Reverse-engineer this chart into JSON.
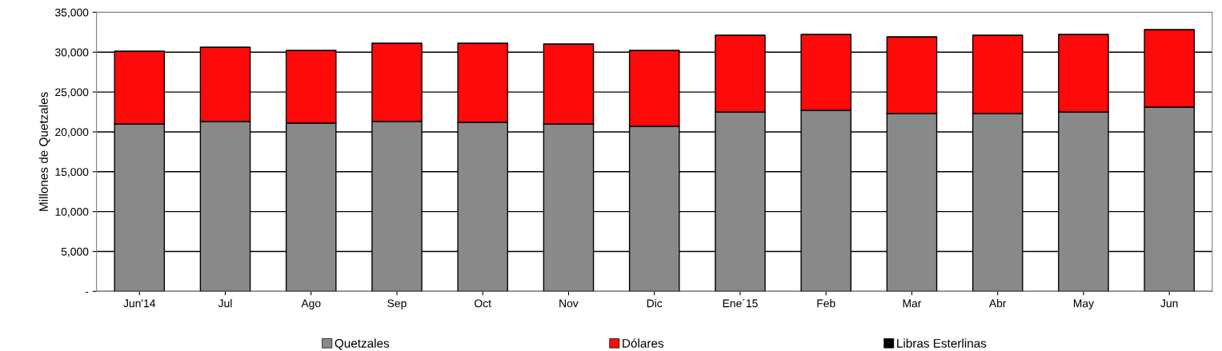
{
  "chart_data": {
    "type": "bar",
    "stacked": true,
    "ylabel": "Millones de Quetzales",
    "categories": [
      "Jun'14",
      "Jul",
      "Ago",
      "Sep",
      "Oct",
      "Nov",
      "Dic",
      "Ene´15",
      "Feb",
      "Mar",
      "Abr",
      "May",
      "Jun"
    ],
    "series": [
      {
        "name": "Quetzales",
        "color": "#898989",
        "values": [
          21000,
          21300,
          21100,
          21300,
          21200,
          21000,
          20700,
          22500,
          22700,
          22300,
          22300,
          22500,
          23100
        ]
      },
      {
        "name": "Dólares",
        "color": "#ff0a0a",
        "values": [
          9100,
          9300,
          9100,
          9800,
          9900,
          10000,
          9500,
          9600,
          9500,
          9600,
          9800,
          9700,
          9700
        ]
      },
      {
        "name": "Libras Esterlinas",
        "color": "#000000",
        "values": [
          0,
          0,
          0,
          0,
          0,
          0,
          0,
          0,
          0,
          0,
          0,
          0,
          0
        ]
      }
    ],
    "ylim": [
      0,
      35000
    ],
    "yticks": [
      {
        "value": 0,
        "label": "-"
      },
      {
        "value": 5000,
        "label": "5,000"
      },
      {
        "value": 10000,
        "label": "10,000"
      },
      {
        "value": 15000,
        "label": "15,000"
      },
      {
        "value": 20000,
        "label": "20,000"
      },
      {
        "value": 25000,
        "label": "25,000"
      },
      {
        "value": 30000,
        "label": "30,000"
      },
      {
        "value": 35000,
        "label": "35,000"
      }
    ],
    "grid": "y",
    "legend": "bottom"
  }
}
